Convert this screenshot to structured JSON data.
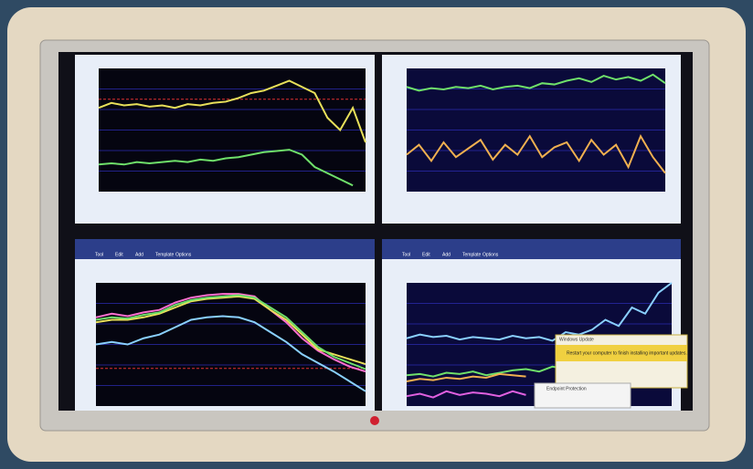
{
  "screens": [
    {
      "series": [
        {
          "color": "#e8e05a",
          "values": [
            68,
            72,
            70,
            71,
            69,
            70,
            68,
            71,
            70,
            72,
            73,
            76,
            80,
            82,
            86,
            90,
            85,
            80,
            60,
            50,
            68,
            40
          ]
        },
        {
          "color": "#6fe06a",
          "values": [
            22,
            23,
            22,
            24,
            23,
            24,
            25,
            24,
            26,
            25,
            27,
            28,
            30,
            32,
            33,
            34,
            30,
            20,
            15,
            10,
            5
          ]
        }
      ]
    },
    {
      "series": [
        {
          "color": "#6fe06a",
          "values": [
            85,
            82,
            84,
            83,
            85,
            84,
            86,
            83,
            85,
            86,
            84,
            88,
            87,
            90,
            92,
            89,
            94,
            91,
            93,
            90,
            95,
            88
          ]
        },
        {
          "color": "#f0b050",
          "values": [
            30,
            38,
            25,
            40,
            28,
            35,
            42,
            26,
            38,
            30,
            45,
            28,
            36,
            40,
            25,
            42,
            30,
            38,
            20,
            45,
            28,
            15
          ]
        }
      ]
    },
    {
      "series": [
        {
          "color": "#ff70d0",
          "values": [
            72,
            75,
            73,
            76,
            78,
            84,
            88,
            90,
            91,
            91,
            89,
            78,
            68,
            55,
            45,
            38,
            32,
            28
          ]
        },
        {
          "color": "#e8e05a",
          "values": [
            68,
            70,
            70,
            72,
            75,
            80,
            85,
            87,
            88,
            89,
            87,
            78,
            70,
            58,
            46,
            42,
            38,
            34
          ]
        },
        {
          "color": "#6fe06a",
          "values": [
            70,
            72,
            71,
            74,
            76,
            82,
            86,
            88,
            89,
            90,
            88,
            80,
            72,
            60,
            48,
            40,
            35,
            30
          ]
        },
        {
          "color": "#8ad0ff",
          "values": [
            50,
            52,
            50,
            55,
            58,
            64,
            70,
            72,
            73,
            72,
            68,
            60,
            52,
            42,
            35,
            28,
            20,
            12
          ]
        }
      ]
    },
    {
      "series": [
        {
          "color": "#8ad0ff",
          "values": [
            55,
            58,
            56,
            57,
            54,
            56,
            55,
            54,
            57,
            55,
            56,
            53,
            60,
            58,
            62,
            70,
            65,
            80,
            75,
            92,
            100
          ]
        },
        {
          "color": "#6fe06a",
          "values": [
            25,
            26,
            24,
            27,
            26,
            28,
            25,
            27,
            29,
            30,
            28,
            32,
            30
          ]
        },
        {
          "color": "#f0b050",
          "values": [
            20,
            22,
            21,
            23,
            22,
            24,
            23,
            26,
            25,
            24
          ]
        },
        {
          "color": "#e060e0",
          "values": [
            8,
            10,
            7,
            12,
            9,
            11,
            10,
            8,
            12,
            9
          ]
        }
      ]
    }
  ],
  "menu": [
    "Tool",
    "Edit",
    "Add",
    "Template",
    "Options"
  ],
  "update_popup": {
    "title": "Windows Update",
    "message": "Restart your computer to finish installing important updates."
  },
  "protection_popup": {
    "title": "Endpoint Protection"
  }
}
